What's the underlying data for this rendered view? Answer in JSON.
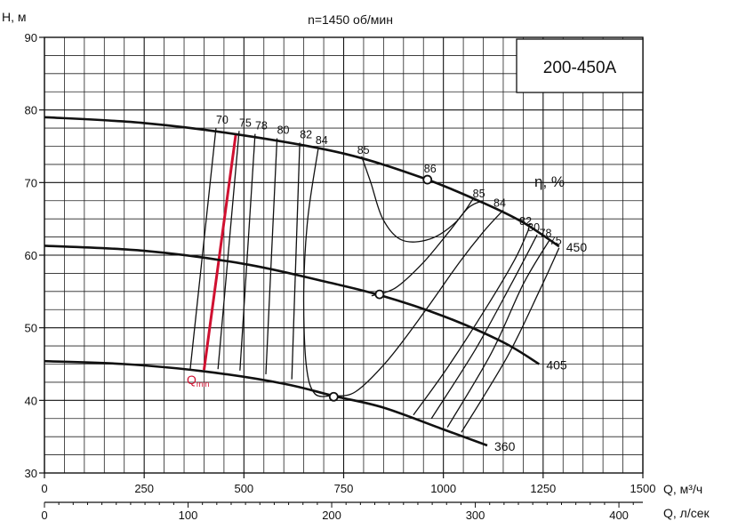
{
  "chart_data": {
    "type": "line",
    "title": "n=1450 об/мин",
    "model": "200-450А",
    "ylabel": "H, м",
    "xlabel": "Q, м³/ч",
    "x2label": "Q, л/сек",
    "efficiency_label": "η, %",
    "qmin_label": "Q",
    "qmin_sub": "min",
    "xlim": [
      0,
      1500
    ],
    "ylim": [
      30,
      90
    ],
    "x_ticks": [
      0,
      250,
      500,
      750,
      1000,
      1250,
      1500
    ],
    "y_ticks": [
      30,
      40,
      50,
      60,
      70,
      80,
      90
    ],
    "x2_ticks": [
      0,
      100,
      200,
      300,
      400
    ],
    "grid": true,
    "series": [
      {
        "name": "450",
        "points": [
          [
            0,
            79
          ],
          [
            250,
            78.2
          ],
          [
            500,
            76.5
          ],
          [
            750,
            74
          ],
          [
            950,
            70.6
          ],
          [
            1100,
            67.2
          ],
          [
            1200,
            64.5
          ],
          [
            1290,
            61.2
          ]
        ]
      },
      {
        "name": "405",
        "points": [
          [
            0,
            61.3
          ],
          [
            250,
            60.6
          ],
          [
            500,
            58.8
          ],
          [
            700,
            56.4
          ],
          [
            840,
            54.5
          ],
          [
            1000,
            51.6
          ],
          [
            1150,
            48
          ],
          [
            1240,
            45
          ]
        ]
      },
      {
        "name": "360",
        "points": [
          [
            0,
            45.4
          ],
          [
            200,
            45
          ],
          [
            400,
            44
          ],
          [
            600,
            42.3
          ],
          [
            725,
            40.6
          ],
          [
            850,
            39
          ],
          [
            1000,
            36
          ],
          [
            1110,
            33.8
          ]
        ]
      }
    ],
    "best_efficiency_points": [
      {
        "label": "86",
        "Q": 960,
        "H": 70.4
      },
      {
        "Q": 840,
        "H": 54.6
      },
      {
        "Q": 725,
        "H": 40.5
      }
    ],
    "qmin_line": {
      "points": [
        [
          400,
          44.2
        ],
        [
          480,
          76.8
        ]
      ]
    },
    "efficiency_left": [
      {
        "label": "70",
        "points": [
          [
            365,
            44.1
          ],
          [
            430,
            77.5
          ]
        ]
      },
      {
        "label": "75",
        "points": [
          [
            435,
            44.3
          ],
          [
            488,
            77.1
          ]
        ]
      },
      {
        "label": "78",
        "points": [
          [
            490,
            44.1
          ],
          [
            528,
            76.7
          ]
        ]
      },
      {
        "label": "80",
        "points": [
          [
            555,
            43.6
          ],
          [
            583,
            76.1
          ]
        ]
      },
      {
        "label": "82",
        "points": [
          [
            620,
            42.9
          ],
          [
            640,
            75.5
          ]
        ]
      }
    ],
    "efficiency_84": {
      "label": "84",
      "points": [
        [
          727,
          40.7
        ],
        [
          678,
          40.9
        ],
        [
          656,
          45
        ],
        [
          650,
          55
        ],
        [
          660,
          65
        ],
        [
          686,
          74.6
        ]
      ]
    },
    "efficiency_85": {
      "label": "85",
      "points": [
        [
          795,
          73.6
        ],
        [
          818,
          70
        ],
        [
          848,
          65
        ],
        [
          895,
          62.1
        ],
        [
          965,
          62.2
        ],
        [
          1030,
          64.5
        ],
        [
          1075,
          67.8
        ]
      ]
    },
    "efficiency_right": [
      {
        "label": "85",
        "points": [
          [
            820,
            54.4
          ],
          [
            880,
            55.5
          ],
          [
            950,
            59
          ],
          [
            1015,
            63.3
          ],
          [
            1062,
            66.5
          ],
          [
            1098,
            67.5
          ]
        ]
      },
      {
        "label": "84",
        "points": [
          [
            727,
            40.6
          ],
          [
            780,
            41.2
          ],
          [
            860,
            45.5
          ],
          [
            950,
            52
          ],
          [
            1040,
            59
          ],
          [
            1100,
            63.2
          ],
          [
            1150,
            66.2
          ]
        ]
      },
      {
        "label": "82",
        "points": [
          [
            925,
            38
          ],
          [
            1010,
            44.5
          ],
          [
            1110,
            53
          ],
          [
            1180,
            59.5
          ],
          [
            1215,
            63.7
          ]
        ]
      },
      {
        "label": "80",
        "points": [
          [
            970,
            37.5
          ],
          [
            1080,
            47
          ],
          [
            1170,
            56
          ],
          [
            1235,
            62.8
          ]
        ]
      },
      {
        "label": "78",
        "points": [
          [
            1010,
            36.3
          ],
          [
            1120,
            46.5
          ],
          [
            1200,
            56
          ],
          [
            1265,
            62
          ]
        ]
      },
      {
        "label": "75",
        "points": [
          [
            1045,
            35.6
          ],
          [
            1160,
            46
          ],
          [
            1240,
            55
          ],
          [
            1290,
            61
          ]
        ]
      }
    ]
  }
}
